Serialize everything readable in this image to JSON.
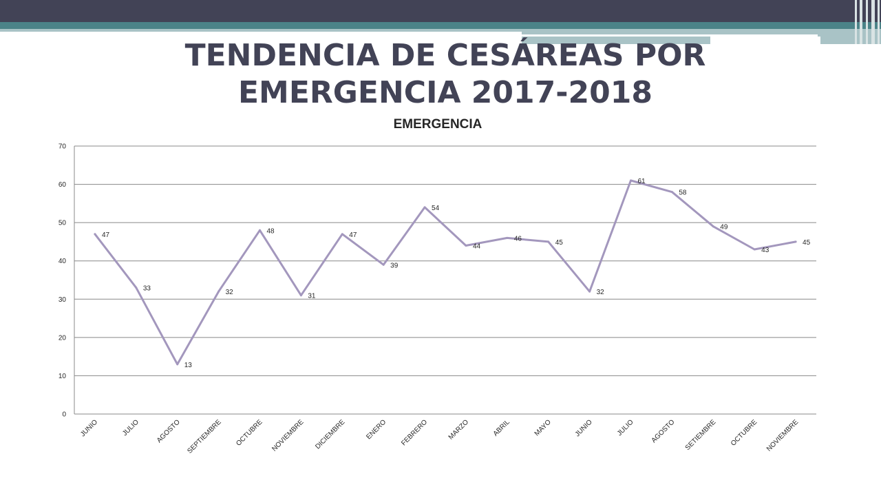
{
  "slide": {
    "title_line1": "TENDENCIA DE CESÁREAS POR",
    "title_line2": "EMERGENCIA 2017-2018"
  },
  "colors": {
    "header_dark": "#424356",
    "header_teal": "#4b8388",
    "header_light": "#a9c3c6",
    "series_line": "#a397bd",
    "gridline": "#888888",
    "title_text": "#424356"
  },
  "chart_data": {
    "type": "line",
    "title": "EMERGENCIA",
    "xlabel": "",
    "ylabel": "",
    "categories": [
      "JUNIO",
      "JULIO",
      "AGOSTO",
      "SEPTIEMBRE",
      "OCTUBRE",
      "NOVIEMBRE",
      "DICIEMBRE",
      "ENERO",
      "FEBRERO",
      "MARZO",
      "ABRIL",
      "MAYO",
      "JUNIO",
      "JULIO",
      "AGOSTO",
      "SETIEMBRE",
      "OCTUBRE",
      "NOVIEMBRE"
    ],
    "series": [
      {
        "values": [
          47,
          33,
          13,
          32,
          48,
          31,
          47,
          39,
          54,
          44,
          46,
          45,
          32,
          61,
          58,
          49,
          43,
          45
        ]
      }
    ],
    "ylim": [
      0,
      70
    ],
    "yticks": [
      0,
      10,
      20,
      30,
      40,
      50,
      60,
      70
    ],
    "grid": true,
    "legend": "none",
    "data_labels": true
  }
}
